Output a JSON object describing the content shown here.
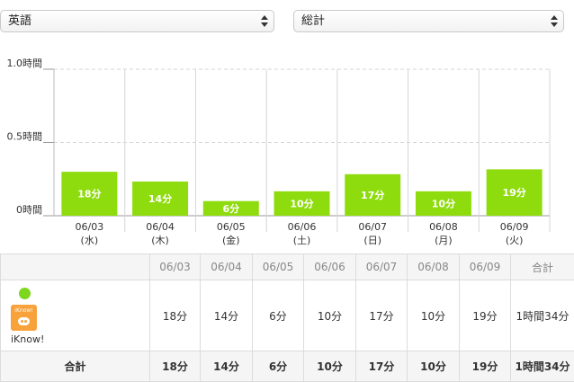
{
  "selectors": {
    "language": "英語",
    "period": "総計"
  },
  "chart_data": {
    "type": "bar",
    "categories": [
      "06/03",
      "06/04",
      "06/05",
      "06/06",
      "06/07",
      "06/08",
      "06/09"
    ],
    "weekdays": [
      "(水)",
      "(木)",
      "(金)",
      "(土)",
      "(日)",
      "(月)",
      "(火)"
    ],
    "values": [
      18,
      14,
      6,
      10,
      17,
      10,
      19
    ],
    "data_labels": [
      "18分",
      "14分",
      "6分",
      "10分",
      "17分",
      "10分",
      "19分"
    ],
    "yticks": [
      "1.0時間",
      "0.5時間",
      "0時間"
    ],
    "ylim_hours": [
      0,
      1.0
    ],
    "title": "",
    "xlabel": "",
    "ylabel": "",
    "bar_color": "#8fdc0e",
    "grid": true
  },
  "table": {
    "columns": [
      "06/03",
      "06/04",
      "06/05",
      "06/06",
      "06/07",
      "06/08",
      "06/09",
      "合計"
    ],
    "app": {
      "name": "iKnow!",
      "icon_text": "iKnow!",
      "dot_color": "#7ed61e",
      "values": [
        "18分",
        "14分",
        "6分",
        "10分",
        "17分",
        "10分",
        "19分",
        "1時間34分"
      ]
    },
    "total_label": "合計",
    "totals": [
      "18分",
      "14分",
      "6分",
      "10分",
      "17分",
      "10分",
      "19分",
      "1時間34分"
    ]
  }
}
